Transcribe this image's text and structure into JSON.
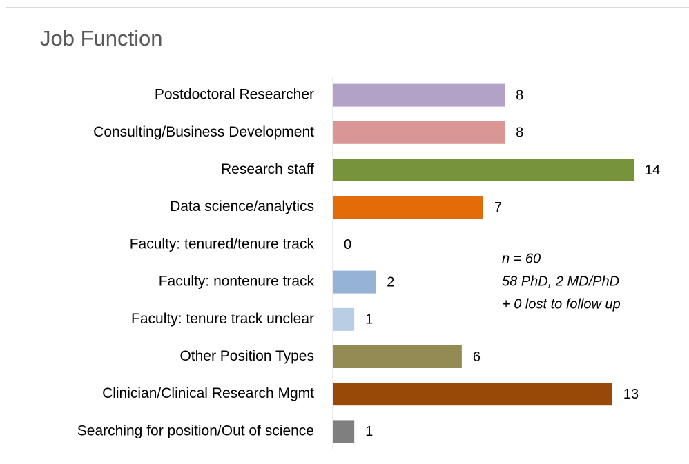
{
  "chart_data": {
    "type": "barh",
    "title": "Job Function",
    "categories": [
      "Postdoctoral Researcher",
      "Consulting/Business Development",
      "Research staff",
      "Data science/analytics",
      "Faculty: tenured/tenure track",
      "Faculty: nontenure track",
      "Faculty: tenure track unclear",
      "Other Position Types",
      "Clinician/Clinical Research Mgmt",
      "Searching for position/Out of science"
    ],
    "values": [
      8,
      8,
      14,
      7,
      0,
      2,
      1,
      6,
      13,
      1
    ],
    "colors": [
      "#b3a2c7",
      "#d99694",
      "#77933c",
      "#e36c09",
      "#8064a2",
      "#95b3d7",
      "#b9cde5",
      "#948a54",
      "#984807",
      "#7f7f7f"
    ],
    "annotations": [
      "n = 60",
      "58 PhD, 2 MD/PhD",
      "+ 0 lost to follow up"
    ]
  }
}
